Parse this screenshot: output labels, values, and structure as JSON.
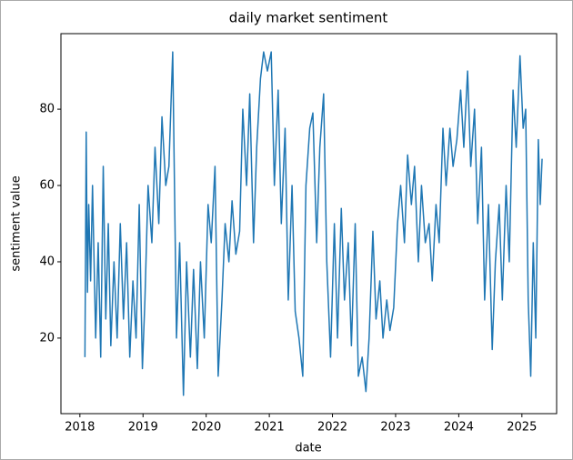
{
  "chart_data": {
    "type": "line",
    "title": "daily market sentiment",
    "x_label": "date",
    "y_label": "sentiment value",
    "x": [
      2018.08,
      2018.1,
      2018.12,
      2018.14,
      2018.17,
      2018.2,
      2018.25,
      2018.29,
      2018.33,
      2018.37,
      2018.41,
      2018.45,
      2018.49,
      2018.54,
      2018.59,
      2018.64,
      2018.69,
      2018.74,
      2018.79,
      2018.84,
      2018.89,
      2018.94,
      2018.99,
      2019.03,
      2019.08,
      2019.14,
      2019.19,
      2019.25,
      2019.3,
      2019.36,
      2019.41,
      2019.47,
      2019.53,
      2019.58,
      2019.64,
      2019.69,
      2019.75,
      2019.8,
      2019.86,
      2019.91,
      2019.97,
      2020.03,
      2020.08,
      2020.14,
      2020.19,
      2020.25,
      2020.3,
      2020.36,
      2020.41,
      2020.47,
      2020.53,
      2020.58,
      2020.64,
      2020.69,
      2020.75,
      2020.8,
      2020.86,
      2020.91,
      2020.97,
      2021.03,
      2021.08,
      2021.14,
      2021.19,
      2021.25,
      2021.3,
      2021.36,
      2021.41,
      2021.47,
      2021.53,
      2021.58,
      2021.64,
      2021.69,
      2021.75,
      2021.8,
      2021.86,
      2021.91,
      2021.97,
      2022.03,
      2022.08,
      2022.14,
      2022.19,
      2022.25,
      2022.3,
      2022.36,
      2022.41,
      2022.47,
      2022.53,
      2022.58,
      2022.64,
      2022.69,
      2022.75,
      2022.8,
      2022.86,
      2022.91,
      2022.97,
      2023.03,
      2023.08,
      2023.14,
      2023.19,
      2023.25,
      2023.3,
      2023.36,
      2023.41,
      2023.47,
      2023.53,
      2023.58,
      2023.64,
      2023.69,
      2023.75,
      2023.8,
      2023.86,
      2023.91,
      2023.97,
      2024.03,
      2024.08,
      2024.14,
      2024.19,
      2024.25,
      2024.3,
      2024.36,
      2024.41,
      2024.47,
      2024.53,
      2024.58,
      2024.64,
      2024.69,
      2024.75,
      2024.8,
      2024.86,
      2024.91,
      2024.97,
      2025.02,
      2025.06,
      2025.1,
      2025.14,
      2025.18,
      2025.22,
      2025.26,
      2025.29,
      2025.32
    ],
    "series": [
      {
        "name": "sentiment value",
        "color": "#1f77b4",
        "values": [
          15,
          74,
          32,
          55,
          35,
          60,
          20,
          45,
          15,
          65,
          25,
          50,
          18,
          40,
          20,
          50,
          25,
          45,
          15,
          35,
          20,
          55,
          12,
          30,
          60,
          45,
          70,
          50,
          78,
          60,
          65,
          95,
          20,
          45,
          5,
          40,
          15,
          38,
          12,
          40,
          20,
          55,
          45,
          65,
          10,
          30,
          50,
          40,
          56,
          42,
          48,
          80,
          60,
          84,
          45,
          70,
          88,
          95,
          90,
          95,
          60,
          85,
          50,
          75,
          30,
          60,
          27,
          20,
          10,
          60,
          75,
          79,
          45,
          70,
          84,
          40,
          15,
          50,
          20,
          54,
          30,
          45,
          18,
          50,
          10,
          15,
          6,
          20,
          48,
          25,
          35,
          20,
          30,
          22,
          28,
          50,
          60,
          45,
          68,
          55,
          65,
          40,
          60,
          45,
          50,
          35,
          55,
          45,
          75,
          60,
          75,
          65,
          72,
          85,
          70,
          90,
          65,
          80,
          50,
          70,
          30,
          55,
          17,
          40,
          55,
          30,
          60,
          40,
          85,
          70,
          94,
          75,
          80,
          30,
          10,
          45,
          20,
          72,
          55,
          67
        ]
      }
    ],
    "xlim": [
      2017.7,
      2025.55
    ],
    "xticks": [
      2018,
      2019,
      2020,
      2021,
      2022,
      2023,
      2024,
      2025
    ],
    "ylim": [
      0.2,
      99.8
    ],
    "yticks": [
      20,
      40,
      60,
      80
    ]
  }
}
